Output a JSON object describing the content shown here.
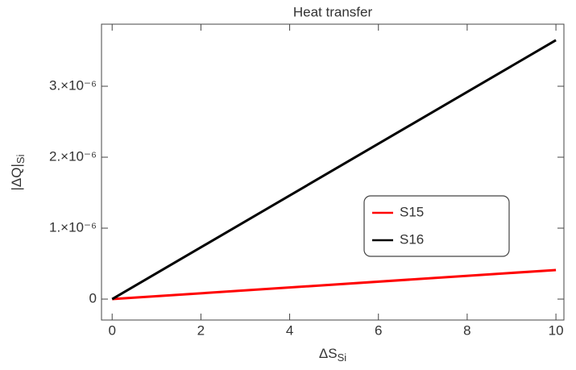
{
  "chart_data": {
    "type": "line",
    "title": "Heat transfer",
    "x_label": "ΔS",
    "x_label_sub": "Si",
    "y_label": "|ΔQ|",
    "y_label_sub": "Si",
    "x": [
      0,
      10
    ],
    "series": [
      {
        "name": "S15",
        "color": "#ff0000",
        "values": [
          0,
          4.1e-07
        ]
      },
      {
        "name": "S16",
        "color": "#000000",
        "values": [
          0,
          3.65e-06
        ]
      }
    ],
    "xlim": [
      -0.24,
      10.18
    ],
    "xticks": [
      0,
      2,
      4,
      6,
      8,
      10
    ],
    "ylim": [
      -2.95e-07,
      3.875e-06
    ],
    "yticks": [
      0,
      {
        "value": 1e-06,
        "label": "1.×10⁻⁶"
      },
      {
        "value": 2e-06,
        "label": "2.×10⁻⁶"
      },
      {
        "value": 3e-06,
        "label": "3.×10⁻⁶"
      }
    ],
    "legend": "center-right",
    "grid": false
  }
}
